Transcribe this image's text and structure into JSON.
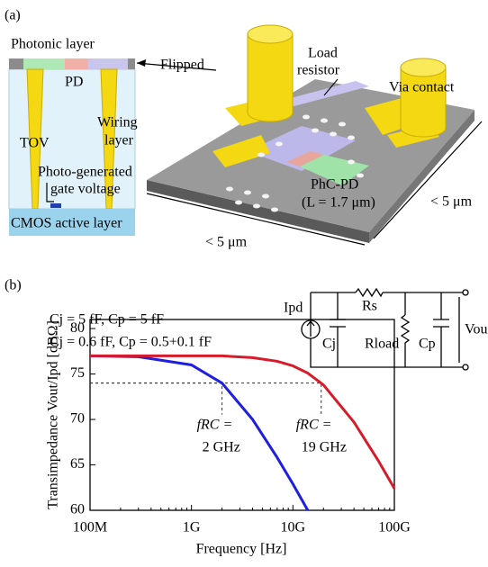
{
  "diagram": {
    "panel_label": "(a)",
    "photonic_layer": "Photonic layer",
    "pd": "PD",
    "flipped": "Flipped",
    "tov": "TOV",
    "wiring_layer": [
      "Wiring",
      "layer"
    ],
    "gate_voltage": [
      "Photo-generated",
      "gate voltage"
    ],
    "cmos_layer": "CMOS active layer",
    "load_resistor": [
      "Load",
      "resistor"
    ],
    "via_contact": "Via contact",
    "phc_pd": [
      "PhC-PD",
      "(L = 1.7 μm)"
    ],
    "size_right": "< 5 μm",
    "size_bottom": "< 5 μm"
  },
  "chart_data": {
    "type": "line",
    "panel_label": "(b)",
    "x_label": "Frequency [Hz]",
    "y_label": "Transimpedance Vout/Ipd [dBΩ]",
    "log_x": true,
    "grid": false,
    "xlim": [
      100000000,
      100000000000
    ],
    "ylim": [
      60,
      81
    ],
    "xticks": [
      {
        "value": 100000000,
        "label": "100M"
      },
      {
        "value": 1000000000,
        "label": "1G"
      },
      {
        "value": 10000000000,
        "label": "10G"
      },
      {
        "value": 100000000000,
        "label": "100G"
      }
    ],
    "yticks": [
      60,
      65,
      70,
      75,
      80
    ],
    "x": [
      100000000,
      300000000,
      1000000000,
      2000000000,
      4000000000,
      7000000000,
      10000000000,
      14000000000,
      20000000000,
      40000000000,
      70000000000,
      100000000000
    ],
    "series": [
      {
        "name": "Cj = 5 fF, Cp = 5 fF",
        "color": "#1f1fe0",
        "values": [
          77.0,
          76.9,
          76.0,
          74.0,
          70.0,
          65.8,
          62.9,
          60.0,
          null,
          null,
          null,
          null
        ]
      },
      {
        "name": "Cj = 0.6 fF, Cp = 0.5+0.1 fF",
        "color": "#d81b2b",
        "values": [
          77.0,
          77.0,
          77.0,
          77.0,
          76.8,
          76.4,
          75.9,
          75.1,
          73.8,
          69.7,
          65.4,
          62.4
        ]
      }
    ],
    "annotations": [
      {
        "text": [
          "fRC =",
          "2 GHz"
        ],
        "x": 2000000000,
        "y": 74,
        "color": "#1f1fe0"
      },
      {
        "text": [
          "fRC =",
          "19 GHz"
        ],
        "x": 19000000000,
        "y": 74,
        "color": "#d81b2b"
      }
    ],
    "circuit": {
      "ipd": "Ipd",
      "rs": "Rs",
      "cj": "Cj",
      "rload": "Rload",
      "cp": "Cp",
      "vout": "Vou"
    }
  }
}
